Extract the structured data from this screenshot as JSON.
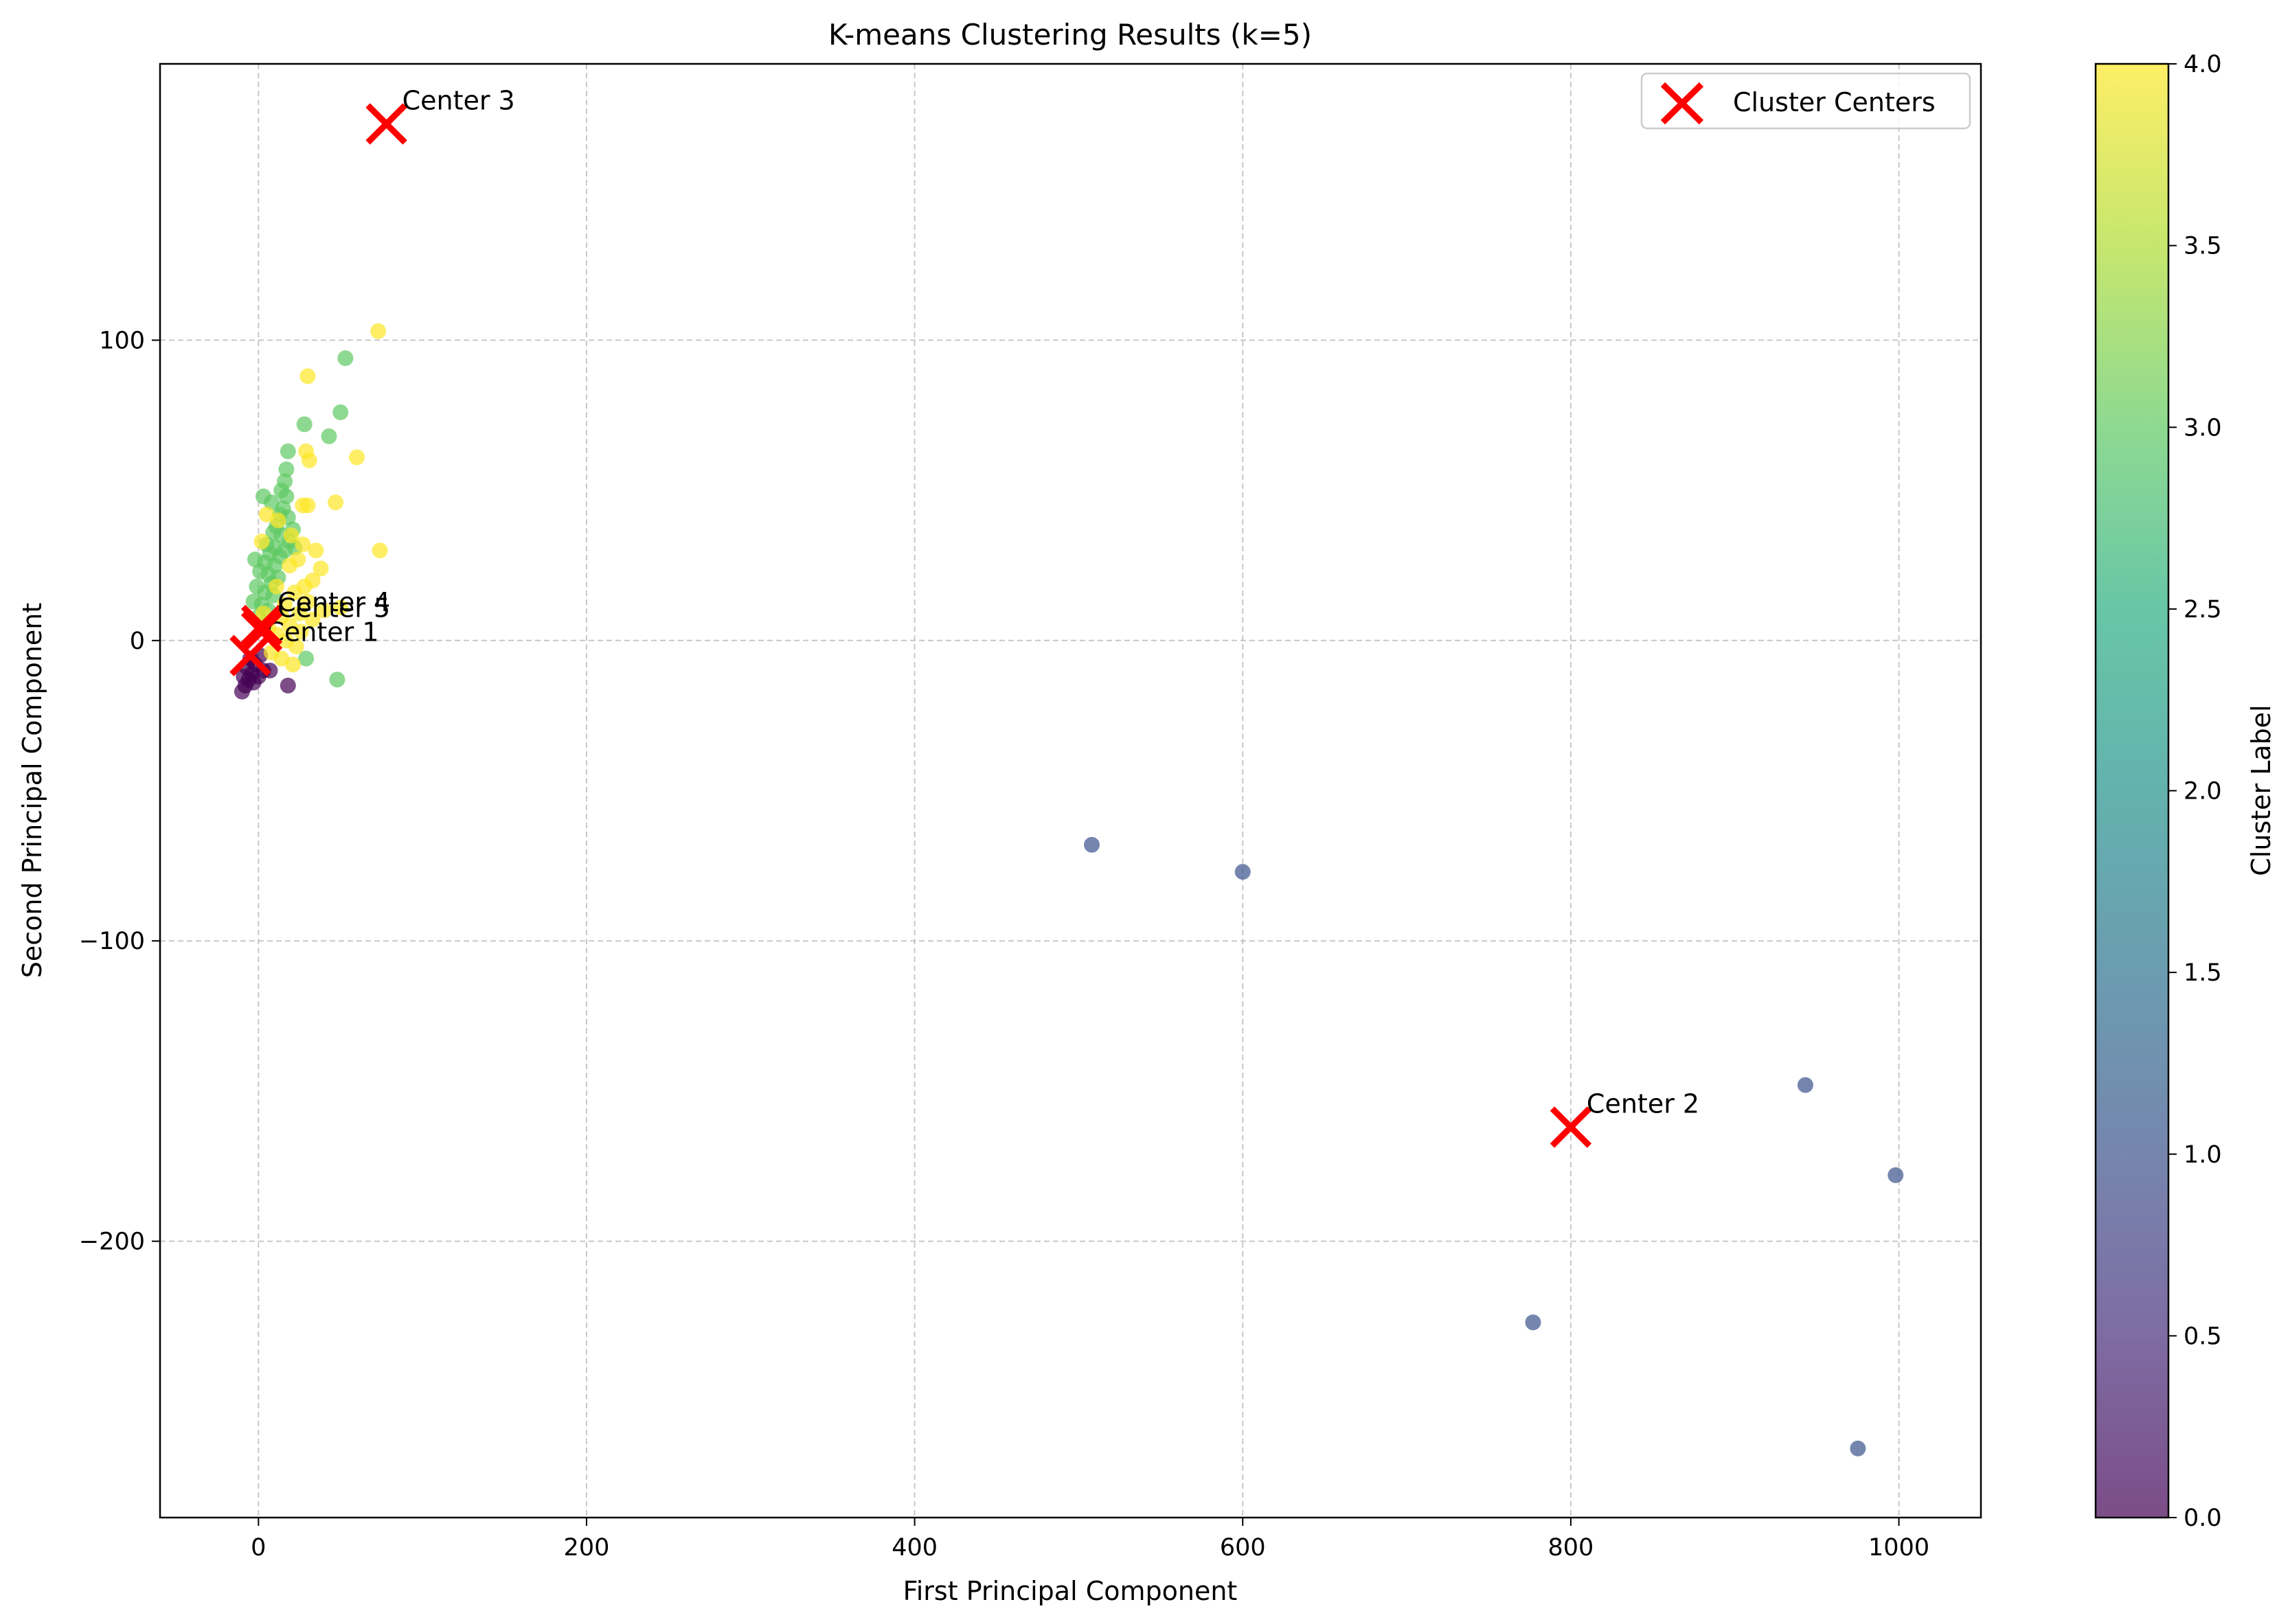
{
  "chart_data": {
    "type": "scatter",
    "title": "K-means Clustering Results (k=5)",
    "xlabel": "First Principal Component",
    "ylabel": "Second Principal Component",
    "xlim": [
      -60,
      1050
    ],
    "ylim": [
      -292,
      192
    ],
    "x_ticks": [
      0,
      200,
      400,
      600,
      800,
      1000
    ],
    "y_ticks": [
      -200,
      -100,
      0,
      100
    ],
    "grid": true,
    "legend_position": "top-right",
    "legend": [
      {
        "label": "Cluster Centers",
        "marker": "x",
        "color": "#ff0000"
      }
    ],
    "colorbar": {
      "label": "Cluster Label",
      "colormap": "viridis",
      "range": [
        0,
        4
      ],
      "ticks": [
        "0.0",
        "0.5",
        "1.0",
        "1.5",
        "2.0",
        "2.5",
        "3.0",
        "3.5",
        "4.0"
      ],
      "alpha": 0.7
    },
    "cluster_colors": [
      "#440154",
      "#3b528b",
      "#21918c",
      "#5ec962",
      "#fde725"
    ],
    "points": [
      {
        "x": -10,
        "y": -17,
        "cluster": 0
      },
      {
        "x": -8,
        "y": -15,
        "cluster": 0
      },
      {
        "x": -6,
        "y": -13,
        "cluster": 0
      },
      {
        "x": -4,
        "y": -11,
        "cluster": 0
      },
      {
        "x": -7,
        "y": -9,
        "cluster": 0
      },
      {
        "x": -3,
        "y": -14,
        "cluster": 0
      },
      {
        "x": 0,
        "y": -12,
        "cluster": 0
      },
      {
        "x": 3,
        "y": -10,
        "cluster": 0
      },
      {
        "x": 7,
        "y": -10,
        "cluster": 0
      },
      {
        "x": 18,
        "y": -15,
        "cluster": 0
      },
      {
        "x": -5,
        "y": -6,
        "cluster": 0
      },
      {
        "x": -2,
        "y": -8,
        "cluster": 0
      },
      {
        "x": 1,
        "y": -5,
        "cluster": 0
      },
      {
        "x": -9,
        "y": -12,
        "cluster": 0
      },
      {
        "x": 508,
        "y": -68,
        "cluster": 1
      },
      {
        "x": 600,
        "y": -77,
        "cluster": 1
      },
      {
        "x": 777,
        "y": -227,
        "cluster": 1
      },
      {
        "x": 943,
        "y": -148,
        "cluster": 1
      },
      {
        "x": 975,
        "y": -269,
        "cluster": 1
      },
      {
        "x": 998,
        "y": -178,
        "cluster": 1
      },
      {
        "x": 53,
        "y": 94,
        "cluster": 3
      },
      {
        "x": 50,
        "y": 76,
        "cluster": 3
      },
      {
        "x": 28,
        "y": 72,
        "cluster": 3
      },
      {
        "x": 43,
        "y": 68,
        "cluster": 3
      },
      {
        "x": 18,
        "y": 63,
        "cluster": 3
      },
      {
        "x": 17,
        "y": 57,
        "cluster": 3
      },
      {
        "x": 16,
        "y": 53,
        "cluster": 3
      },
      {
        "x": 14,
        "y": 50,
        "cluster": 3
      },
      {
        "x": 3,
        "y": 48,
        "cluster": 3
      },
      {
        "x": 17,
        "y": 48,
        "cluster": 3
      },
      {
        "x": 8,
        "y": 46,
        "cluster": 3
      },
      {
        "x": 15,
        "y": 44,
        "cluster": 3
      },
      {
        "x": 13,
        "y": 42,
        "cluster": 3
      },
      {
        "x": 18,
        "y": 41,
        "cluster": 3
      },
      {
        "x": 11,
        "y": 38,
        "cluster": 3
      },
      {
        "x": 9,
        "y": 36,
        "cluster": 3
      },
      {
        "x": 14,
        "y": 35,
        "cluster": 3
      },
      {
        "x": 19,
        "y": 33,
        "cluster": 3
      },
      {
        "x": 5,
        "y": 32,
        "cluster": 3
      },
      {
        "x": 10,
        "y": 31,
        "cluster": 3
      },
      {
        "x": 22,
        "y": 31,
        "cluster": 3
      },
      {
        "x": 7,
        "y": 29,
        "cluster": 3
      },
      {
        "x": 13,
        "y": 28,
        "cluster": 3
      },
      {
        "x": -2,
        "y": 27,
        "cluster": 3
      },
      {
        "x": 4,
        "y": 26,
        "cluster": 3
      },
      {
        "x": 10,
        "y": 25,
        "cluster": 3
      },
      {
        "x": 1,
        "y": 23,
        "cluster": 3
      },
      {
        "x": 6,
        "y": 22,
        "cluster": 3
      },
      {
        "x": 12,
        "y": 21,
        "cluster": 3
      },
      {
        "x": 8,
        "y": 19,
        "cluster": 3
      },
      {
        "x": -1,
        "y": 18,
        "cluster": 3
      },
      {
        "x": 4,
        "y": 16,
        "cluster": 3
      },
      {
        "x": 9,
        "y": 15,
        "cluster": 3
      },
      {
        "x": -3,
        "y": 13,
        "cluster": 3
      },
      {
        "x": 2,
        "y": 12,
        "cluster": 3
      },
      {
        "x": 6,
        "y": 10,
        "cluster": 3
      },
      {
        "x": 0,
        "y": 8,
        "cluster": 3
      },
      {
        "x": 4,
        "y": 5,
        "cluster": 3
      },
      {
        "x": 29,
        "y": -6,
        "cluster": 3
      },
      {
        "x": 48,
        "y": -13,
        "cluster": 3
      },
      {
        "x": 21,
        "y": 37,
        "cluster": 3
      },
      {
        "x": 16,
        "y": 30,
        "cluster": 3
      },
      {
        "x": 73,
        "y": 103,
        "cluster": 4
      },
      {
        "x": 30,
        "y": 88,
        "cluster": 4
      },
      {
        "x": 29,
        "y": 63,
        "cluster": 4
      },
      {
        "x": 60,
        "y": 61,
        "cluster": 4
      },
      {
        "x": 31,
        "y": 60,
        "cluster": 4
      },
      {
        "x": 47,
        "y": 46,
        "cluster": 4
      },
      {
        "x": 27,
        "y": 45,
        "cluster": 4
      },
      {
        "x": 30,
        "y": 45,
        "cluster": 4
      },
      {
        "x": 5,
        "y": 42,
        "cluster": 4
      },
      {
        "x": 12,
        "y": 40,
        "cluster": 4
      },
      {
        "x": 20,
        "y": 35,
        "cluster": 4
      },
      {
        "x": 74,
        "y": 30,
        "cluster": 4
      },
      {
        "x": 35,
        "y": 30,
        "cluster": 4
      },
      {
        "x": 27,
        "y": 32,
        "cluster": 4
      },
      {
        "x": 2,
        "y": 33,
        "cluster": 4
      },
      {
        "x": 24,
        "y": 27,
        "cluster": 4
      },
      {
        "x": 38,
        "y": 24,
        "cluster": 4
      },
      {
        "x": 19,
        "y": 25,
        "cluster": 4
      },
      {
        "x": 33,
        "y": 20,
        "cluster": 4
      },
      {
        "x": 28,
        "y": 18,
        "cluster": 4
      },
      {
        "x": 11,
        "y": 18,
        "cluster": 4
      },
      {
        "x": 22,
        "y": 16,
        "cluster": 4
      },
      {
        "x": 30,
        "y": 13,
        "cluster": 4
      },
      {
        "x": 16,
        "y": 12,
        "cluster": 4
      },
      {
        "x": 40,
        "y": 10,
        "cluster": 4
      },
      {
        "x": 50,
        "y": 11,
        "cluster": 4
      },
      {
        "x": 25,
        "y": 9,
        "cluster": 4
      },
      {
        "x": 14,
        "y": 8,
        "cluster": 4
      },
      {
        "x": 19,
        "y": 5,
        "cluster": 4
      },
      {
        "x": 26,
        "y": 3,
        "cluster": 4
      },
      {
        "x": 11,
        "y": 2,
        "cluster": 4
      },
      {
        "x": 17,
        "y": 0,
        "cluster": 4
      },
      {
        "x": 23,
        "y": -2,
        "cluster": 4
      },
      {
        "x": 8,
        "y": -4,
        "cluster": 4
      },
      {
        "x": 14,
        "y": -6,
        "cluster": 4
      },
      {
        "x": 21,
        "y": -8,
        "cluster": 4
      },
      {
        "x": 6,
        "y": 4,
        "cluster": 4
      },
      {
        "x": 33,
        "y": 7,
        "cluster": 4
      },
      {
        "x": 3,
        "y": 9,
        "cluster": 4
      }
    ],
    "centers": [
      {
        "label": "Center 1",
        "x": -5,
        "y": -5
      },
      {
        "label": "Center 2",
        "x": 800,
        "y": -162
      },
      {
        "label": "Center 3",
        "x": 78,
        "y": 172
      },
      {
        "label": "Center 4",
        "x": 2,
        "y": 5
      },
      {
        "label": "Center 5",
        "x": 2,
        "y": 3
      }
    ]
  }
}
